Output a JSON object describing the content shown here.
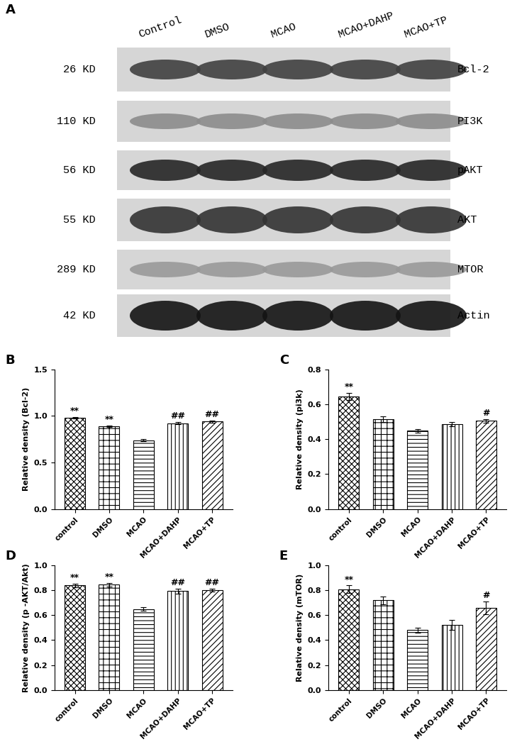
{
  "blot": {
    "panel_label": "A",
    "lanes": [
      "Control",
      "DMSO",
      "MCAO",
      "MCAO+DAHP",
      "MCAO+TP"
    ],
    "rows": [
      {
        "size": "26 KD",
        "protein": "Bcl-2"
      },
      {
        "size": "110 KD",
        "protein": "PI3K"
      },
      {
        "size": "56 KD",
        "protein": "pAKT"
      },
      {
        "size": "55 KD",
        "protein": "AKT"
      },
      {
        "size": "289 KD",
        "protein": "MTOR"
      },
      {
        "size": "42 KD",
        "protein": "Actin"
      }
    ]
  },
  "chart_data": [
    {
      "type": "bar",
      "panel_label": "B",
      "y_label": "Relative density (Bcl-2)",
      "categories": [
        "control",
        "DMSO",
        "MCAO",
        "MCAO+DAHP",
        "MCAO+TP"
      ],
      "values": [
        0.98,
        0.89,
        0.74,
        0.92,
        0.94
      ],
      "errors": [
        0.01,
        0.01,
        0.01,
        0.012,
        0.012
      ],
      "annotations": [
        "**",
        "**",
        null,
        "##",
        "##"
      ],
      "color": "#ffffff",
      "ylim": [
        0.0,
        1.5
      ],
      "yticks": [
        0.0,
        0.5,
        1.0,
        1.5
      ]
    },
    {
      "type": "bar",
      "panel_label": "C",
      "y_label": "Relative density (pi3k)",
      "categories": [
        "control",
        "DMSO",
        "MCAO",
        "MCAO+DAHP",
        "MCAO+TP"
      ],
      "values": [
        0.645,
        0.515,
        0.448,
        0.487,
        0.505
      ],
      "errors": [
        0.02,
        0.015,
        0.01,
        0.012,
        0.01
      ],
      "annotations": [
        "**",
        null,
        null,
        null,
        "#"
      ],
      "color": "#ffffff",
      "ylim": [
        0.0,
        0.8
      ],
      "yticks": [
        0.0,
        0.2,
        0.4,
        0.6,
        0.8
      ]
    },
    {
      "type": "bar",
      "panel_label": "D",
      "y_label": "Relative density (p -AKT/Akt)",
      "categories": [
        "control",
        "DMSO",
        "MCAO",
        "MCAO+DAHP",
        "MCAO+TP"
      ],
      "values": [
        0.84,
        0.845,
        0.65,
        0.795,
        0.8
      ],
      "errors": [
        0.015,
        0.015,
        0.015,
        0.02,
        0.012
      ],
      "annotations": [
        "**",
        "**",
        null,
        "##",
        "##"
      ],
      "color": "#ffffff",
      "ylim": [
        0.0,
        1.0
      ],
      "yticks": [
        0.0,
        0.2,
        0.4,
        0.6,
        0.8,
        1.0
      ]
    },
    {
      "type": "bar",
      "panel_label": "E",
      "y_label": "Relative density (mTOR)",
      "categories": [
        "control",
        "DMSO",
        "MCAO",
        "MCAO+DAHP",
        "MCAO+TP"
      ],
      "values": [
        0.81,
        0.72,
        0.48,
        0.52,
        0.66
      ],
      "errors": [
        0.03,
        0.03,
        0.02,
        0.04,
        0.05
      ],
      "annotations": [
        "**",
        null,
        null,
        null,
        "#"
      ],
      "color": "#ffffff",
      "ylim": [
        0.0,
        1.0
      ],
      "yticks": [
        0.0,
        0.2,
        0.4,
        0.6,
        0.8,
        1.0
      ]
    }
  ]
}
